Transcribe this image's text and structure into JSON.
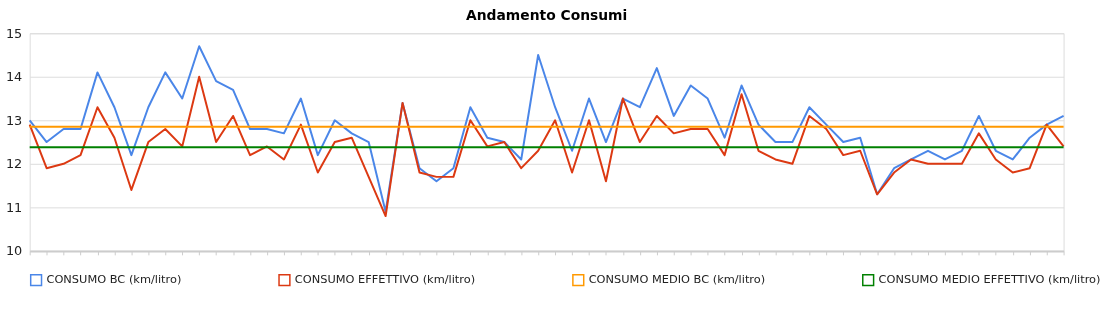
{
  "chart_data": {
    "type": "line",
    "title": "Andamento Consumi",
    "categories": [
      null,
      null,
      null,
      null,
      null,
      null,
      null,
      null,
      null,
      null,
      null,
      null,
      null,
      null,
      null,
      null,
      null,
      null,
      null,
      null,
      null,
      null,
      null,
      null,
      null,
      null,
      null,
      null,
      null,
      null,
      null,
      null,
      null,
      null,
      null,
      null,
      null,
      null,
      null,
      null,
      null,
      null,
      null,
      null,
      null,
      null,
      null,
      null,
      null,
      null,
      null,
      null,
      null,
      null,
      null,
      null,
      null,
      null,
      null,
      null,
      null,
      null
    ],
    "series": [
      {
        "name": "CONSUMO BC (km/litro)",
        "color": "#4a86e8",
        "values": [
          13.0,
          12.5,
          12.8,
          12.8,
          14.1,
          13.3,
          12.2,
          13.3,
          14.1,
          13.5,
          14.7,
          13.9,
          13.7,
          12.8,
          12.8,
          12.7,
          13.5,
          12.2,
          13.0,
          12.7,
          12.5,
          10.9,
          13.4,
          11.9,
          11.6,
          11.9,
          13.3,
          12.6,
          12.5,
          12.1,
          14.5,
          13.3,
          12.3,
          13.5,
          12.5,
          13.5,
          13.3,
          14.2,
          13.1,
          13.8,
          13.5,
          12.6,
          13.8,
          12.9,
          12.5,
          12.5,
          13.3,
          12.9,
          12.5,
          12.6,
          11.3,
          11.9,
          12.1,
          12.3,
          12.1,
          12.3,
          13.1,
          12.3,
          12.1,
          12.6,
          12.9,
          13.1
        ]
      },
      {
        "name": "CONSUMO EFFETTIVO (km/litro)",
        "color": "#dc3912",
        "values": [
          12.9,
          11.9,
          12.0,
          12.2,
          13.3,
          12.6,
          11.4,
          12.5,
          12.8,
          12.4,
          14.0,
          12.5,
          13.1,
          12.2,
          12.4,
          12.1,
          12.9,
          11.8,
          12.5,
          12.6,
          11.7,
          10.8,
          13.4,
          11.8,
          11.7,
          11.7,
          13.0,
          12.4,
          12.5,
          11.9,
          12.3,
          13.0,
          11.8,
          13.0,
          11.6,
          13.5,
          12.5,
          13.1,
          12.7,
          12.8,
          12.8,
          12.2,
          13.6,
          12.3,
          12.1,
          12.0,
          13.1,
          12.8,
          12.2,
          12.3,
          11.3,
          11.8,
          12.1,
          12.0,
          12.0,
          12.0,
          12.7,
          12.1,
          11.8,
          11.9,
          12.9,
          12.4
        ]
      },
      {
        "name": "CONSUMO MEDIO BC (km/litro)",
        "color": "#ff9900",
        "values": [
          12.85,
          12.85,
          12.85,
          12.85,
          12.85,
          12.85,
          12.85,
          12.85,
          12.85,
          12.85,
          12.85,
          12.85,
          12.85,
          12.85,
          12.85,
          12.85,
          12.85,
          12.85,
          12.85,
          12.85,
          12.85,
          12.85,
          12.85,
          12.85,
          12.85,
          12.85,
          12.85,
          12.85,
          12.85,
          12.85,
          12.85,
          12.85,
          12.85,
          12.85,
          12.85,
          12.85,
          12.85,
          12.85,
          12.85,
          12.85,
          12.85,
          12.85,
          12.85,
          12.85,
          12.85,
          12.85,
          12.85,
          12.85,
          12.85,
          12.85,
          12.85,
          12.85,
          12.85,
          12.85,
          12.85,
          12.85,
          12.85,
          12.85,
          12.85,
          12.85,
          12.85,
          12.85
        ]
      },
      {
        "name": "CONSUMO MEDIO EFFETTIVO (km/litro)",
        "color": "#008000",
        "values": [
          12.38,
          12.38,
          12.38,
          12.38,
          12.38,
          12.38,
          12.38,
          12.38,
          12.38,
          12.38,
          12.38,
          12.38,
          12.38,
          12.38,
          12.38,
          12.38,
          12.38,
          12.38,
          12.38,
          12.38,
          12.38,
          12.38,
          12.38,
          12.38,
          12.38,
          12.38,
          12.38,
          12.38,
          12.38,
          12.38,
          12.38,
          12.38,
          12.38,
          12.38,
          12.38,
          12.38,
          12.38,
          12.38,
          12.38,
          12.38,
          12.38,
          12.38,
          12.38,
          12.38,
          12.38,
          12.38,
          12.38,
          12.38,
          12.38,
          12.38,
          12.38,
          12.38,
          12.38,
          12.38,
          12.38,
          12.38,
          12.38,
          12.38,
          12.38,
          12.38,
          12.38,
          12.38
        ]
      }
    ],
    "ylim": [
      10,
      15
    ],
    "yticks": [
      10,
      11,
      12,
      13,
      14,
      15
    ],
    "grid": "y",
    "legend": "bottom",
    "tick_labels": "y",
    "marker": "none",
    "line_style": "solid"
  }
}
